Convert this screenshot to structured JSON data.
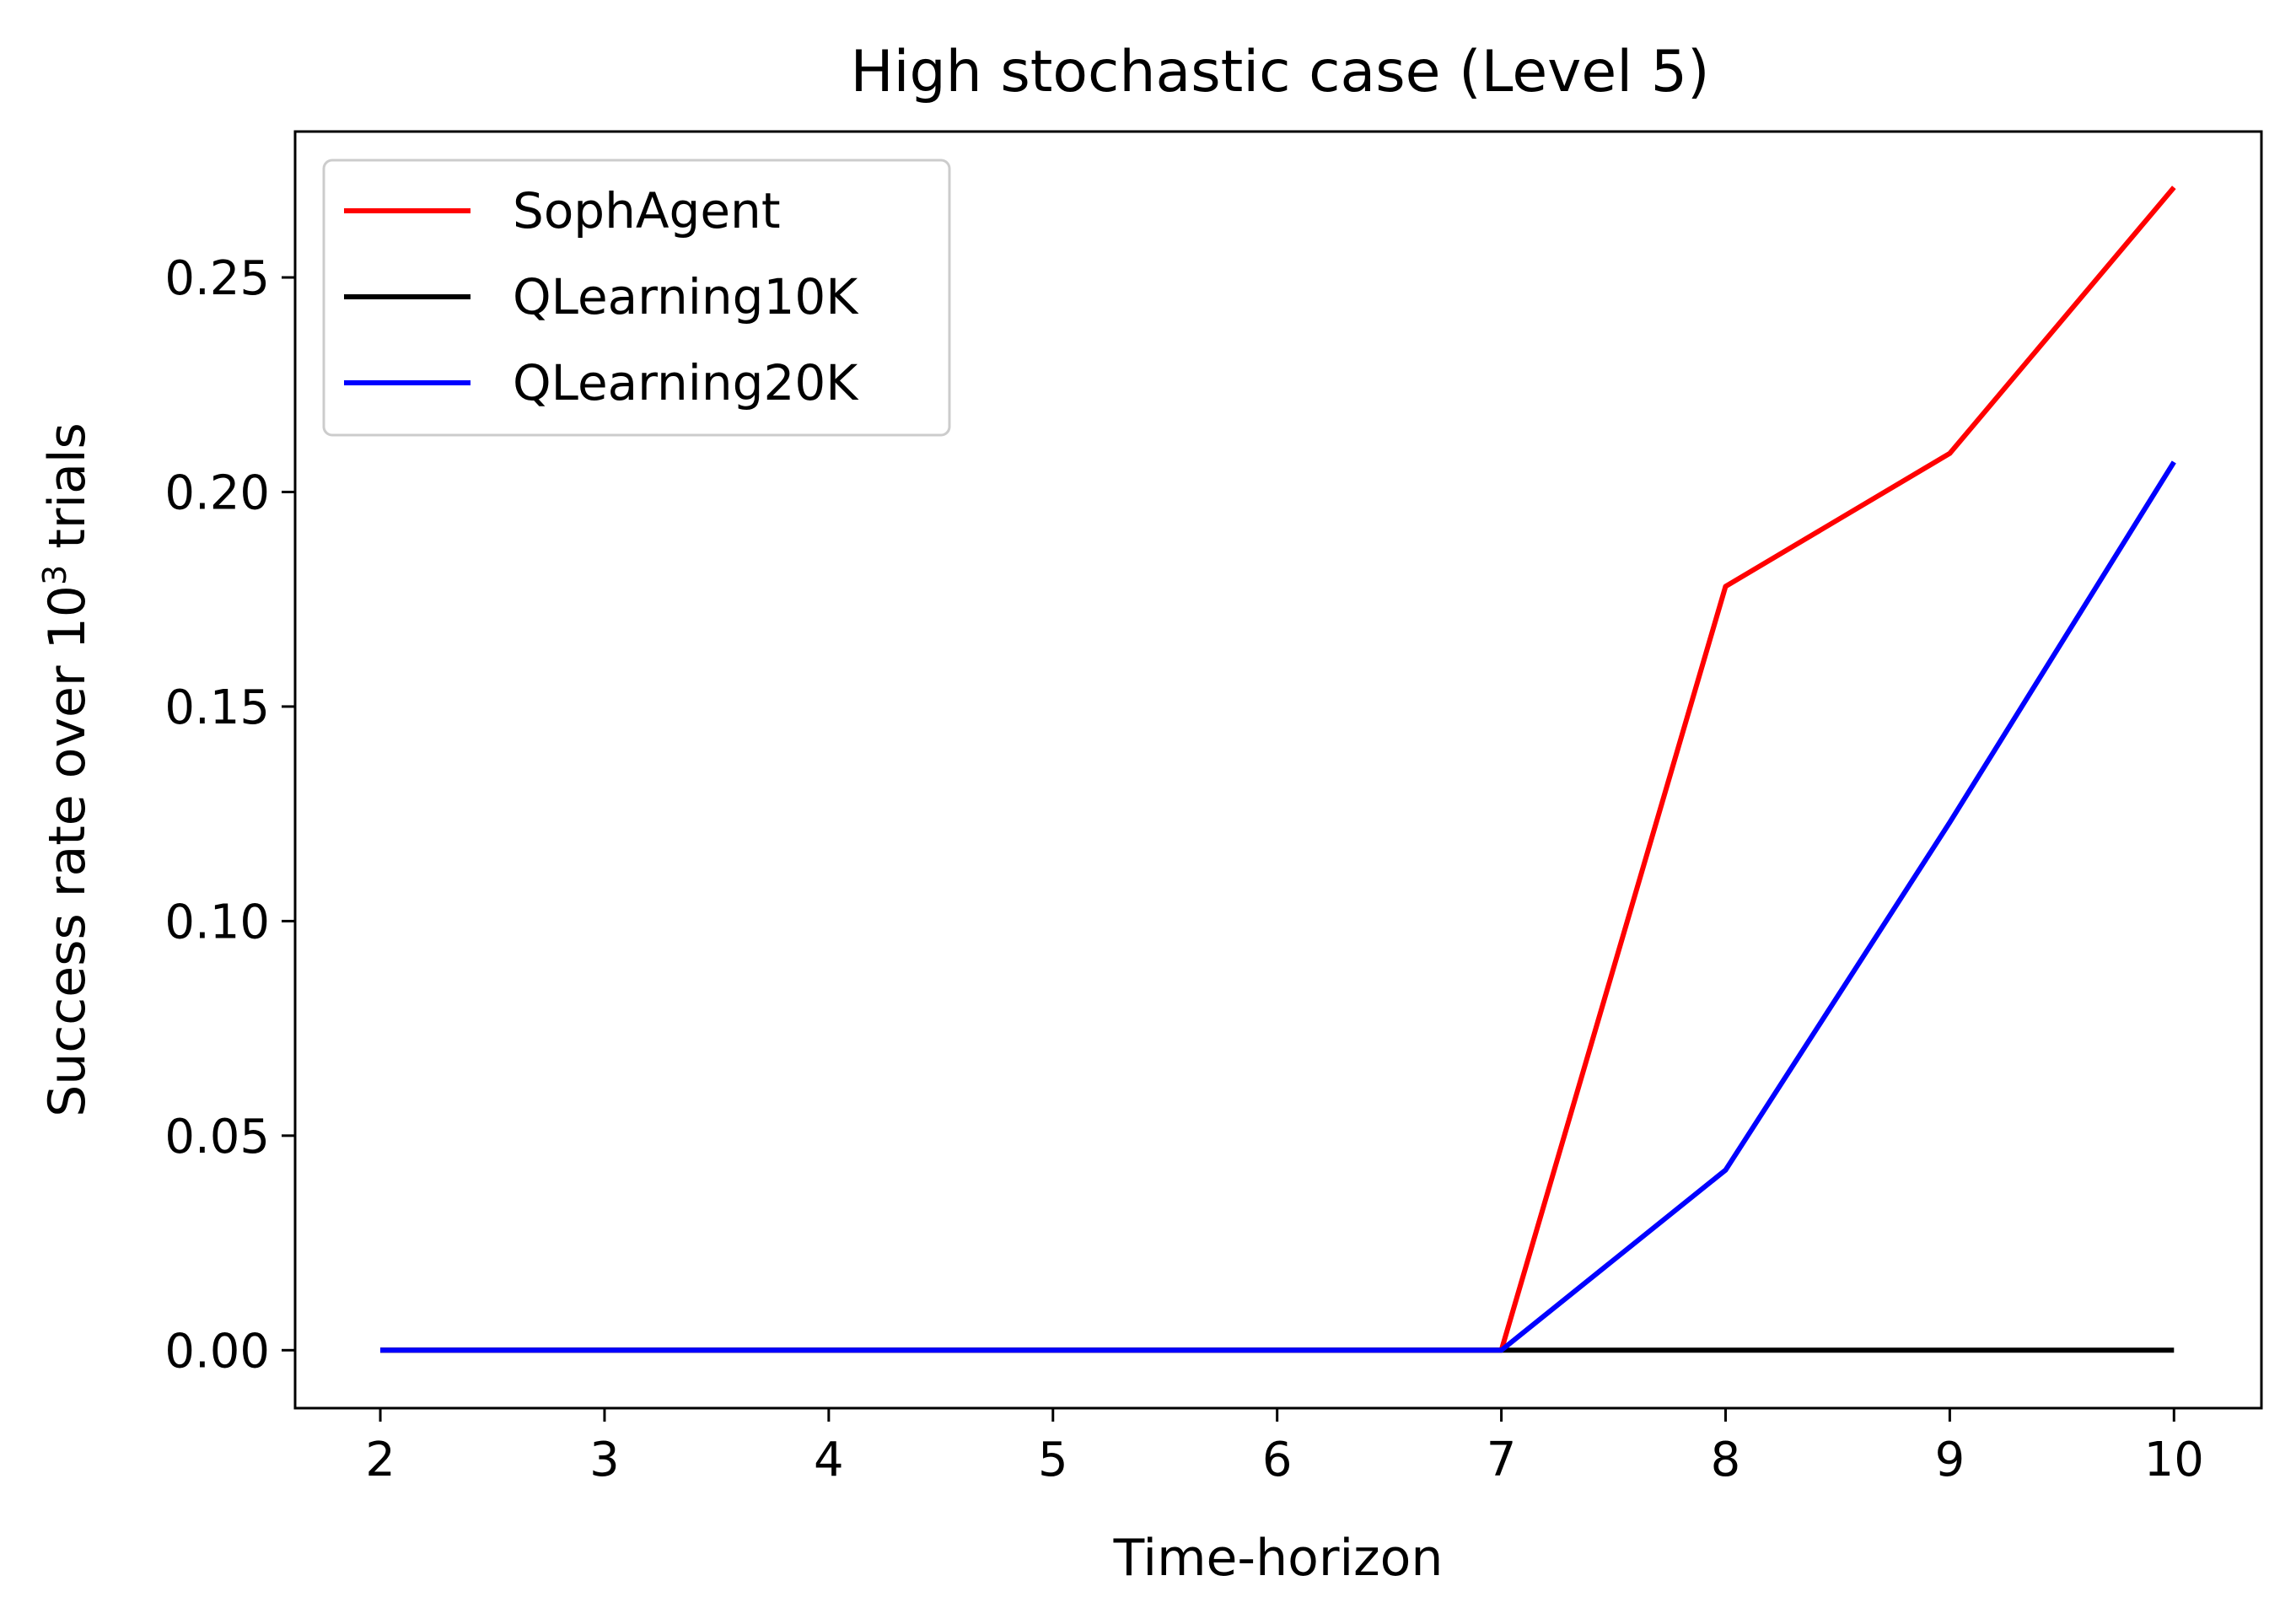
{
  "chart_data": {
    "type": "line",
    "title": "High stochastic case (Level 5)",
    "xlabel": "Time-horizon",
    "ylabel": {
      "base": "Success rate over 10",
      "sup": "3",
      "suffix": " trials"
    },
    "x": [
      2,
      3,
      4,
      5,
      6,
      7,
      8,
      9,
      10
    ],
    "xlim": [
      1.62,
      10.39
    ],
    "ylim": [
      -0.0135,
      0.284
    ],
    "xticks": [
      2,
      3,
      4,
      5,
      6,
      7,
      8,
      9,
      10
    ],
    "xtick_labels": [
      "2",
      "3",
      "4",
      "5",
      "6",
      "7",
      "8",
      "9",
      "10"
    ],
    "yticks": [
      0.0,
      0.05,
      0.1,
      0.15,
      0.2,
      0.25
    ],
    "ytick_labels": [
      "0.00",
      "0.05",
      "0.10",
      "0.15",
      "0.20",
      "0.25"
    ],
    "grid": false,
    "legend_position": "top-left",
    "series": [
      {
        "name": "SophAgent",
        "color": "#ff0000",
        "values": [
          0,
          0,
          0,
          0,
          0,
          0,
          0.178,
          0.209,
          0.271
        ]
      },
      {
        "name": "QLearning10K",
        "color": "#000000",
        "values": [
          0,
          0,
          0,
          0,
          0,
          0,
          0,
          0,
          0
        ]
      },
      {
        "name": "QLearning20K",
        "color": "#0000ff",
        "values": [
          0,
          0,
          0,
          0,
          0,
          0,
          0.042,
          0.123,
          0.207
        ]
      }
    ]
  }
}
